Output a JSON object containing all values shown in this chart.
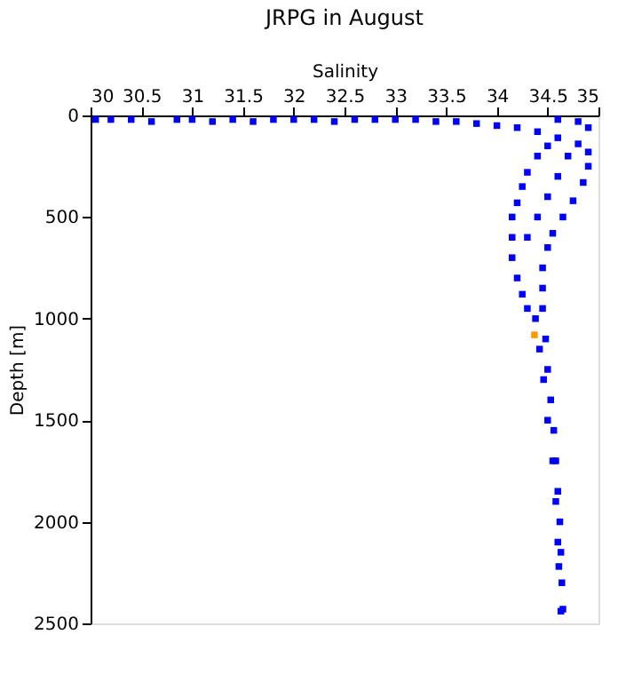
{
  "chart_data": {
    "type": "scatter",
    "title": "JRPG in August",
    "xlabel": "Salinity",
    "ylabel": "Depth [m]",
    "xlim": [
      30,
      35
    ],
    "xticks": [
      30,
      30.5,
      31,
      31.5,
      32,
      32.5,
      33,
      33.5,
      34,
      34.5,
      35
    ],
    "ylim": [
      2500,
      0
    ],
    "yticks": [
      0,
      500,
      1000,
      1500,
      2000,
      2500
    ],
    "grid": false,
    "marker": "square",
    "series": [
      {
        "color": "#0000ff",
        "x": [
          30.05,
          30.2,
          30.4,
          30.6,
          30.85,
          31.0,
          31.2,
          31.4,
          31.6,
          31.8,
          32.0,
          32.2,
          32.4,
          32.6,
          32.8,
          33.0,
          33.2,
          33.4,
          33.6,
          33.8,
          34.0,
          34.2,
          34.4,
          34.6,
          34.8,
          34.9,
          34.9,
          34.85,
          34.75,
          34.65,
          34.55,
          34.5,
          34.45,
          34.45,
          34.45,
          34.48,
          34.5,
          34.53,
          34.56,
          34.58,
          34.6,
          34.62,
          34.63,
          34.64,
          34.65,
          34.6,
          34.8,
          34.9,
          34.5,
          34.4,
          34.3,
          34.25,
          34.2,
          34.15,
          34.15,
          34.15,
          34.2,
          34.25,
          34.3,
          34.38,
          34.42,
          34.46,
          34.5,
          34.55,
          34.58,
          34.6,
          34.61,
          34.63,
          34.7,
          34.6,
          34.5,
          34.4,
          34.3
        ],
        "values": [
          20,
          20,
          20,
          30,
          20,
          20,
          30,
          20,
          30,
          20,
          20,
          20,
          30,
          20,
          20,
          20,
          20,
          30,
          30,
          40,
          50,
          60,
          80,
          110,
          140,
          180,
          250,
          330,
          420,
          500,
          580,
          650,
          750,
          850,
          950,
          1100,
          1250,
          1400,
          1550,
          1700,
          1850,
          2000,
          2150,
          2300,
          2430,
          20,
          30,
          60,
          150,
          200,
          280,
          350,
          430,
          500,
          600,
          700,
          800,
          880,
          950,
          1000,
          1150,
          1300,
          1500,
          1700,
          1900,
          2100,
          2220,
          2440,
          200,
          300,
          400,
          500,
          600
        ]
      },
      {
        "color": "#ff9900",
        "x": [
          34.37
        ],
        "values": [
          1080
        ]
      }
    ]
  }
}
